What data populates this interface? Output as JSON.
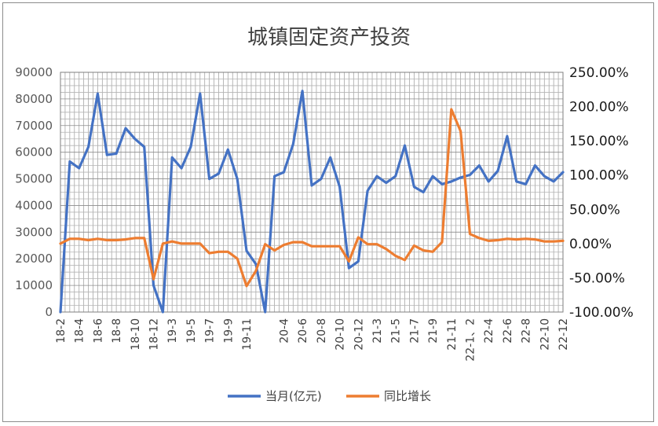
{
  "chart_data": {
    "type": "line",
    "title": "城镇固定资产投资",
    "xlabel": "",
    "ylabel": "",
    "y2label": "",
    "ylim": [
      0,
      90000
    ],
    "y_ticks": [
      "0",
      "10000",
      "20000",
      "30000",
      "40000",
      "50000",
      "60000",
      "70000",
      "80000",
      "90000"
    ],
    "y2lim": [
      -1.0,
      2.5
    ],
    "y2_ticks": [
      "-100.00%",
      "-50.00%",
      "0.00%",
      "50.00%",
      "100.00%",
      "150.00%",
      "200.00%",
      "250.00%"
    ],
    "grid": true,
    "legend_position": "bottom",
    "x_labels": [
      "18-2",
      "18-4",
      "18-6",
      "18-8",
      "18-10",
      "18-12",
      "19-3",
      "19-5",
      "19-7",
      "19-9",
      "19-11",
      "20-2",
      "20-4",
      "20-6",
      "20-8",
      "20-10",
      "20-12",
      "21-3",
      "21-5",
      "21-7",
      "21-9",
      "21-11",
      "22-1、2",
      "22-4",
      "22-6",
      "22-8",
      "22-10",
      "22-12"
    ],
    "categories": [
      "18-2",
      "18-3",
      "18-4",
      "18-5",
      "18-6",
      "18-7",
      "18-8",
      "18-9",
      "18-10",
      "18-11",
      "18-12",
      "19-1、2",
      "19-3",
      "19-4",
      "19-5",
      "19-6",
      "19-7",
      "19-8",
      "19-9",
      "19-10",
      "19-11",
      "19-12",
      "20-1、2",
      "20-3",
      "20-4",
      "20-5",
      "20-6",
      "20-7",
      "20-8",
      "20-9",
      "20-10",
      "20-11",
      "20-12",
      "21-1、2",
      "21-3",
      "21-4",
      "21-5",
      "21-6",
      "21-7",
      "21-8",
      "21-9",
      "21-10",
      "21-11",
      "21-12",
      "22-1、2",
      "22-3",
      "22-4",
      "22-5",
      "22-6",
      "22-7",
      "22-8",
      "22-9",
      "22-10",
      "22-11",
      "22-12"
    ],
    "series": [
      {
        "name": "当月(亿元)",
        "axis": "left",
        "color": "#4472c4",
        "values": [
          0,
          56500,
          54000,
          62000,
          82000,
          59000,
          59500,
          69000,
          65000,
          62000,
          10000,
          0,
          58000,
          54000,
          62000,
          82000,
          50000,
          52000,
          61000,
          50000,
          23000,
          18000,
          0,
          51000,
          52500,
          63000,
          83000,
          47500,
          50000,
          58000,
          47000,
          16500,
          19000,
          45500,
          51000,
          48500,
          51000,
          62500,
          47000,
          45000,
          51000,
          48000,
          49000,
          50500,
          51500,
          55000,
          49000,
          53000,
          66000,
          49000,
          48000,
          55000,
          51000,
          49000,
          52500
        ]
      },
      {
        "name": "同比增长",
        "axis": "right",
        "color": "#ed7d31",
        "values": [
          0.0,
          0.07,
          0.07,
          0.05,
          0.07,
          0.05,
          0.05,
          0.06,
          0.08,
          0.08,
          -0.52,
          0.0,
          0.03,
          0.0,
          0.0,
          0.0,
          -0.14,
          -0.12,
          -0.12,
          -0.22,
          -0.62,
          -0.4,
          -0.01,
          -0.1,
          -0.02,
          0.02,
          0.02,
          -0.04,
          -0.04,
          -0.04,
          -0.04,
          -0.26,
          0.09,
          -0.01,
          -0.01,
          -0.08,
          -0.18,
          -0.24,
          -0.03,
          -0.1,
          -0.12,
          0.02,
          1.96,
          1.64,
          0.14,
          0.08,
          0.04,
          0.05,
          0.07,
          0.06,
          0.07,
          0.06,
          0.03,
          0.03,
          0.04
        ]
      }
    ]
  }
}
